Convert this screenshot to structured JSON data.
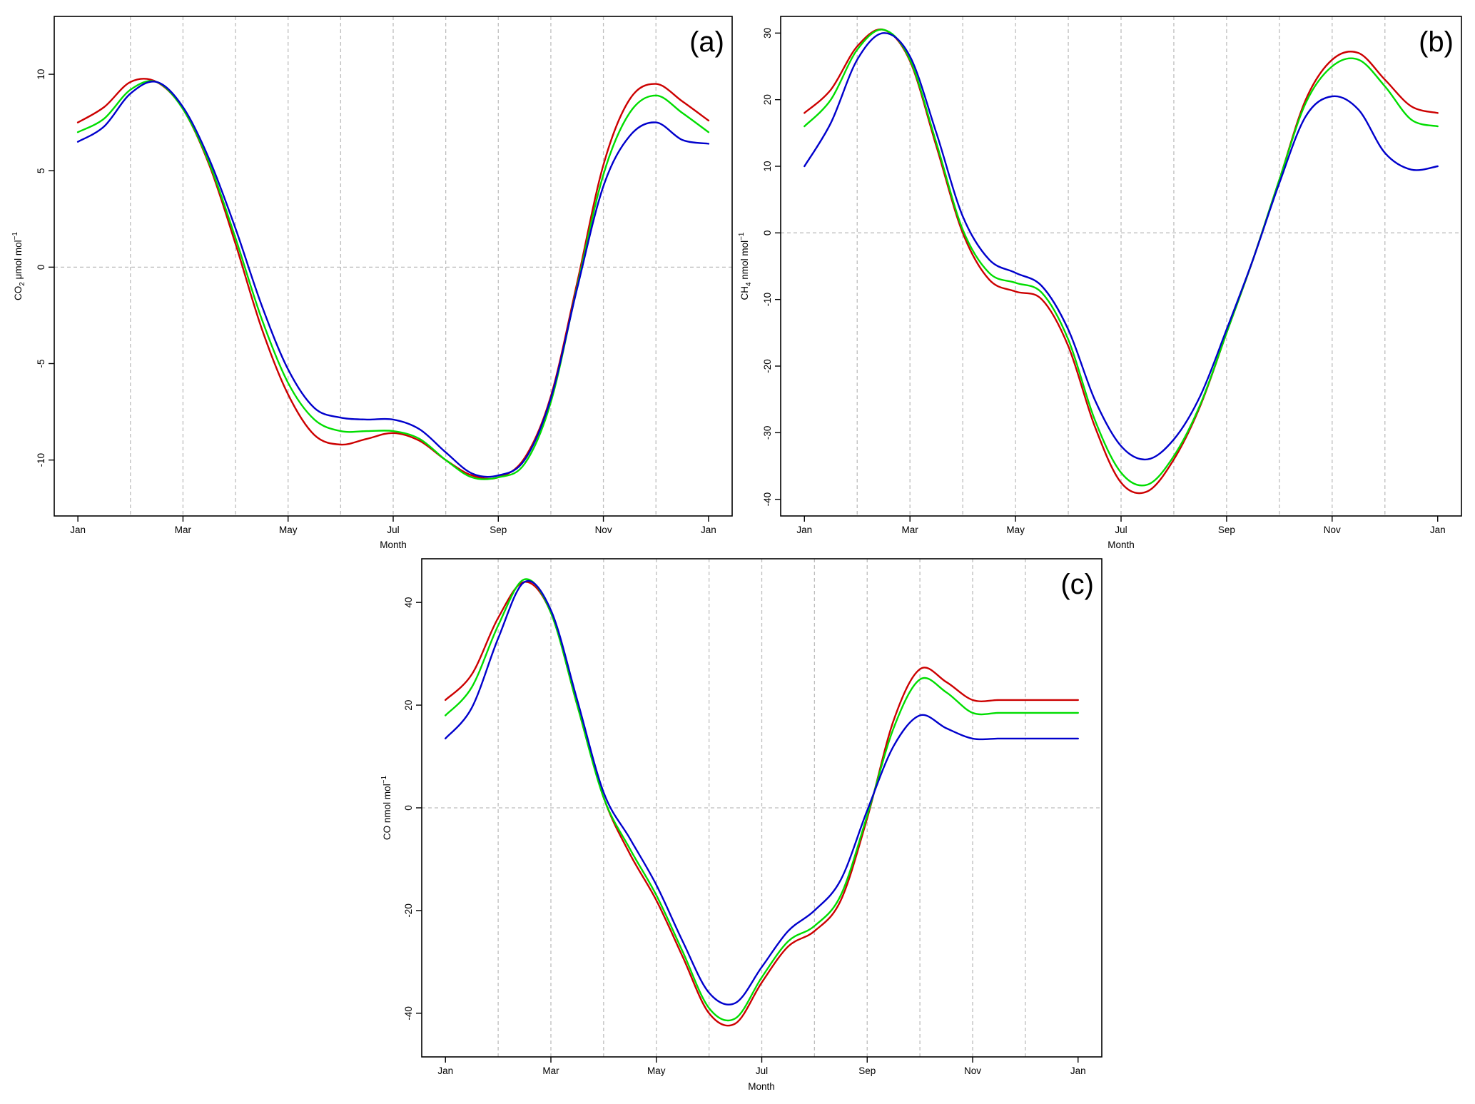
{
  "figure": {
    "panels": [
      {
        "key": "a",
        "ylabel_main": "CO",
        "ylabel_sub": "2",
        "ylabel_rest": " μmol mol",
        "ylabel_sup": "−1"
      },
      {
        "key": "b",
        "ylabel_main": "CH",
        "ylabel_sub": "4",
        "ylabel_rest": " nmol mol",
        "ylabel_sup": "−1"
      },
      {
        "key": "c",
        "ylabel_main": "CO nmol mol",
        "ylabel_sub": "",
        "ylabel_rest": "",
        "ylabel_sup": "−1"
      }
    ]
  },
  "chart_data": [
    {
      "type": "line",
      "panel_label": "(a)",
      "xlabel": "Month",
      "ylabel": "CO2 μmol mol−1",
      "x_tick_labels": [
        "Jan",
        "Mar",
        "May",
        "Jul",
        "Sep",
        "Nov",
        "Jan"
      ],
      "x_tick_months": [
        0,
        2,
        4,
        6,
        8,
        10,
        12
      ],
      "x_gridlines_months": [
        1,
        2,
        3,
        4,
        5,
        6,
        7,
        8,
        9,
        10,
        11
      ],
      "xlim_months": [
        -0.45,
        12.45
      ],
      "y_ticks": [
        -10,
        -5,
        0,
        5,
        10
      ],
      "ylim": [
        -12.9,
        13
      ],
      "zero_line": true,
      "series_colors": [
        "#cc0000",
        "#00dd00",
        "#0000cc"
      ],
      "series": [
        {
          "x": [
            0,
            0.5,
            1,
            1.5,
            2,
            2.5,
            3,
            3.5,
            4,
            4.5,
            5,
            5.5,
            6,
            6.5,
            7,
            7.5,
            8,
            8.5,
            9,
            9.5,
            10,
            10.5,
            11,
            11.5,
            12
          ],
          "values": [
            7.5,
            8.3,
            9.6,
            9.6,
            8.2,
            5.3,
            1.2,
            -3.2,
            -6.6,
            -8.7,
            -9.2,
            -8.9,
            -8.6,
            -9.0,
            -10,
            -10.8,
            -10.9,
            -9.9,
            -6.7,
            -0.8,
            5.3,
            8.7,
            9.5,
            8.6,
            7.6
          ]
        },
        {
          "x": [
            0,
            0.5,
            1,
            1.5,
            2,
            2.5,
            3,
            3.5,
            4,
            4.5,
            5,
            5.5,
            6,
            6.5,
            7,
            7.5,
            8,
            8.5,
            9,
            9.5,
            10,
            10.5,
            11,
            11.5,
            12
          ],
          "values": [
            7.0,
            7.7,
            9.2,
            9.6,
            8.2,
            5.4,
            1.5,
            -2.7,
            -6.0,
            -7.9,
            -8.5,
            -8.5,
            -8.5,
            -8.9,
            -10,
            -10.9,
            -10.9,
            -10.2,
            -7.0,
            -1.0,
            4.8,
            8.0,
            8.9,
            8.0,
            7.0
          ]
        },
        {
          "x": [
            0,
            0.5,
            1,
            1.5,
            2,
            2.5,
            3,
            3.5,
            4,
            4.5,
            5,
            5.5,
            6,
            6.5,
            7,
            7.5,
            8,
            8.5,
            9,
            9.5,
            10,
            10.5,
            11,
            11.5,
            12
          ],
          "values": [
            6.5,
            7.3,
            9.0,
            9.6,
            8.3,
            5.6,
            2.0,
            -2.0,
            -5.3,
            -7.3,
            -7.8,
            -7.9,
            -7.9,
            -8.4,
            -9.6,
            -10.7,
            -10.8,
            -10.0,
            -6.8,
            -1.1,
            4.2,
            6.8,
            7.5,
            6.6,
            6.4
          ]
        }
      ]
    },
    {
      "type": "line",
      "panel_label": "(b)",
      "xlabel": "Month",
      "ylabel": "CH4 nmol mol−1",
      "x_tick_labels": [
        "Jan",
        "Mar",
        "May",
        "Jul",
        "Sep",
        "Nov",
        "Jan"
      ],
      "x_tick_months": [
        0,
        2,
        4,
        6,
        8,
        10,
        12
      ],
      "x_gridlines_months": [
        1,
        2,
        3,
        4,
        5,
        6,
        7,
        8,
        9,
        10,
        11
      ],
      "xlim_months": [
        -0.45,
        12.45
      ],
      "y_ticks": [
        -40,
        -30,
        -20,
        -10,
        0,
        10,
        20,
        30
      ],
      "ylim": [
        -42.5,
        32.5
      ],
      "zero_line": true,
      "series_colors": [
        "#cc0000",
        "#00dd00",
        "#0000cc"
      ],
      "series": [
        {
          "x": [
            0,
            0.5,
            1,
            1.5,
            2,
            2.5,
            3,
            3.5,
            4,
            4.5,
            5,
            5.5,
            6,
            6.5,
            7,
            7.5,
            8,
            8.5,
            9,
            9.5,
            10,
            10.5,
            11,
            11.5,
            12
          ],
          "values": [
            18,
            21.5,
            28,
            30.5,
            25.8,
            13,
            0,
            -7,
            -8.8,
            -10,
            -17,
            -29,
            -37.5,
            -38.8,
            -34,
            -26,
            -15,
            -4,
            8,
            20,
            26,
            27,
            23,
            19,
            18
          ]
        },
        {
          "x": [
            0,
            0.5,
            1,
            1.5,
            2,
            2.5,
            3,
            3.5,
            4,
            4.5,
            5,
            5.5,
            6,
            6.5,
            7,
            7.5,
            8,
            8.5,
            9,
            9.5,
            10,
            10.5,
            11,
            11.5,
            12
          ],
          "values": [
            16,
            20,
            27.5,
            30.5,
            26,
            13.5,
            0.5,
            -6,
            -7.5,
            -9,
            -16,
            -28,
            -36,
            -37.8,
            -33.5,
            -25.8,
            -15,
            -4,
            8,
            19.5,
            25,
            26,
            22,
            17,
            16
          ]
        },
        {
          "x": [
            0,
            0.5,
            1,
            1.5,
            2,
            2.5,
            3,
            3.5,
            4,
            4.5,
            5,
            5.5,
            6,
            6.5,
            7,
            7.5,
            8,
            8.5,
            9,
            9.5,
            10,
            10.5,
            11,
            11.5,
            12
          ],
          "values": [
            10,
            16.5,
            26,
            30,
            26.5,
            15,
            2.5,
            -4,
            -6,
            -8,
            -14.5,
            -25,
            -32,
            -34,
            -31,
            -24.5,
            -14.5,
            -4,
            7.5,
            17.5,
            20.5,
            18.5,
            12,
            9.5,
            10
          ]
        }
      ]
    },
    {
      "type": "line",
      "panel_label": "(c)",
      "xlabel": "Month",
      "ylabel": "CO nmol mol−1",
      "x_tick_labels": [
        "Jan",
        "Mar",
        "May",
        "Jul",
        "Sep",
        "Nov",
        "Jan"
      ],
      "x_tick_months": [
        0,
        2,
        4,
        6,
        8,
        10,
        12
      ],
      "x_gridlines_months": [
        1,
        2,
        3,
        4,
        5,
        6,
        7,
        8,
        9,
        10,
        11
      ],
      "xlim_months": [
        -0.45,
        12.45
      ],
      "y_ticks": [
        -40,
        -20,
        0,
        20,
        40
      ],
      "ylim": [
        -48.5,
        48.5
      ],
      "zero_line": true,
      "series_colors": [
        "#cc0000",
        "#00dd00",
        "#0000cc"
      ],
      "series": [
        {
          "x": [
            0,
            0.5,
            1,
            1.5,
            2,
            2.5,
            3,
            3.5,
            4,
            4.5,
            5,
            5.5,
            6,
            6.5,
            7,
            7.5,
            8,
            8.5,
            9,
            9.5,
            10,
            10.5,
            11,
            11.5,
            12
          ],
          "values": [
            21,
            26,
            37,
            44,
            38,
            20,
            2,
            -9,
            -18,
            -29,
            -40,
            -42,
            -34,
            -27,
            -24,
            -18,
            -2,
            17,
            27,
            24.5,
            21,
            21,
            21,
            21,
            21
          ]
        },
        {
          "x": [
            0,
            0.5,
            1,
            1.5,
            2,
            2.5,
            3,
            3.5,
            4,
            4.5,
            5,
            5.5,
            6,
            6.5,
            7,
            7.5,
            8,
            8.5,
            9,
            9.5,
            10,
            10.5,
            11,
            11.5,
            12
          ],
          "values": [
            18,
            23.5,
            35.5,
            44.5,
            38,
            20,
            2,
            -8,
            -17,
            -28,
            -39,
            -41,
            -33,
            -26,
            -23,
            -17,
            -1.5,
            15.5,
            25,
            22.5,
            18.5,
            18.5,
            18.5,
            18.5,
            18.5
          ]
        },
        {
          "x": [
            0,
            0.5,
            1,
            1.5,
            2,
            2.5,
            3,
            3.5,
            4,
            4.5,
            5,
            5.5,
            6,
            6.5,
            7,
            7.5,
            8,
            8.5,
            9,
            9.5,
            10,
            10.5,
            11,
            11.5,
            12
          ],
          "values": [
            13.5,
            19.5,
            33,
            44,
            38.5,
            21,
            3,
            -6,
            -15,
            -26,
            -36,
            -38,
            -31,
            -24,
            -20,
            -14,
            -0.5,
            12,
            18,
            15.5,
            13.5,
            13.5,
            13.5,
            13.5,
            13.5
          ]
        }
      ]
    }
  ]
}
